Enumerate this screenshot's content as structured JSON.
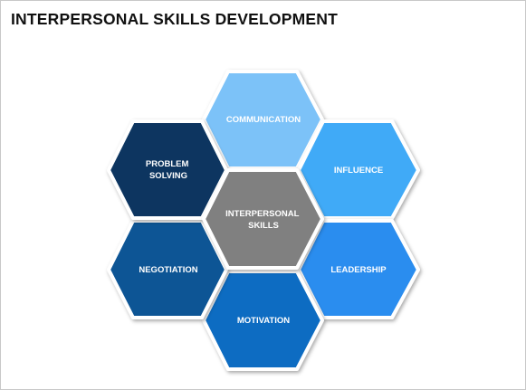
{
  "slide": {
    "title": "INTERPERSONAL SKILLS DEVELOPMENT"
  },
  "diagram": {
    "center": {
      "lines": [
        "INTERPERSONAL",
        "SKILLS"
      ],
      "color": "#808080"
    },
    "nodes": [
      {
        "id": "communication",
        "lines": [
          "COMMUNICATION"
        ],
        "color": "#7cc2f8"
      },
      {
        "id": "influence",
        "lines": [
          "INFLUENCE"
        ],
        "color": "#3faaf7"
      },
      {
        "id": "leadership",
        "lines": [
          "LEADERSHIP"
        ],
        "color": "#2b8def"
      },
      {
        "id": "motivation",
        "lines": [
          "MOTIVATION"
        ],
        "color": "#0b6cc2"
      },
      {
        "id": "negotiation",
        "lines": [
          "NEGOTIATION"
        ],
        "color": "#0b5595"
      },
      {
        "id": "problem-solving",
        "lines": [
          "PROBLEM",
          "SOLVING"
        ],
        "color": "#0a3661"
      }
    ]
  }
}
